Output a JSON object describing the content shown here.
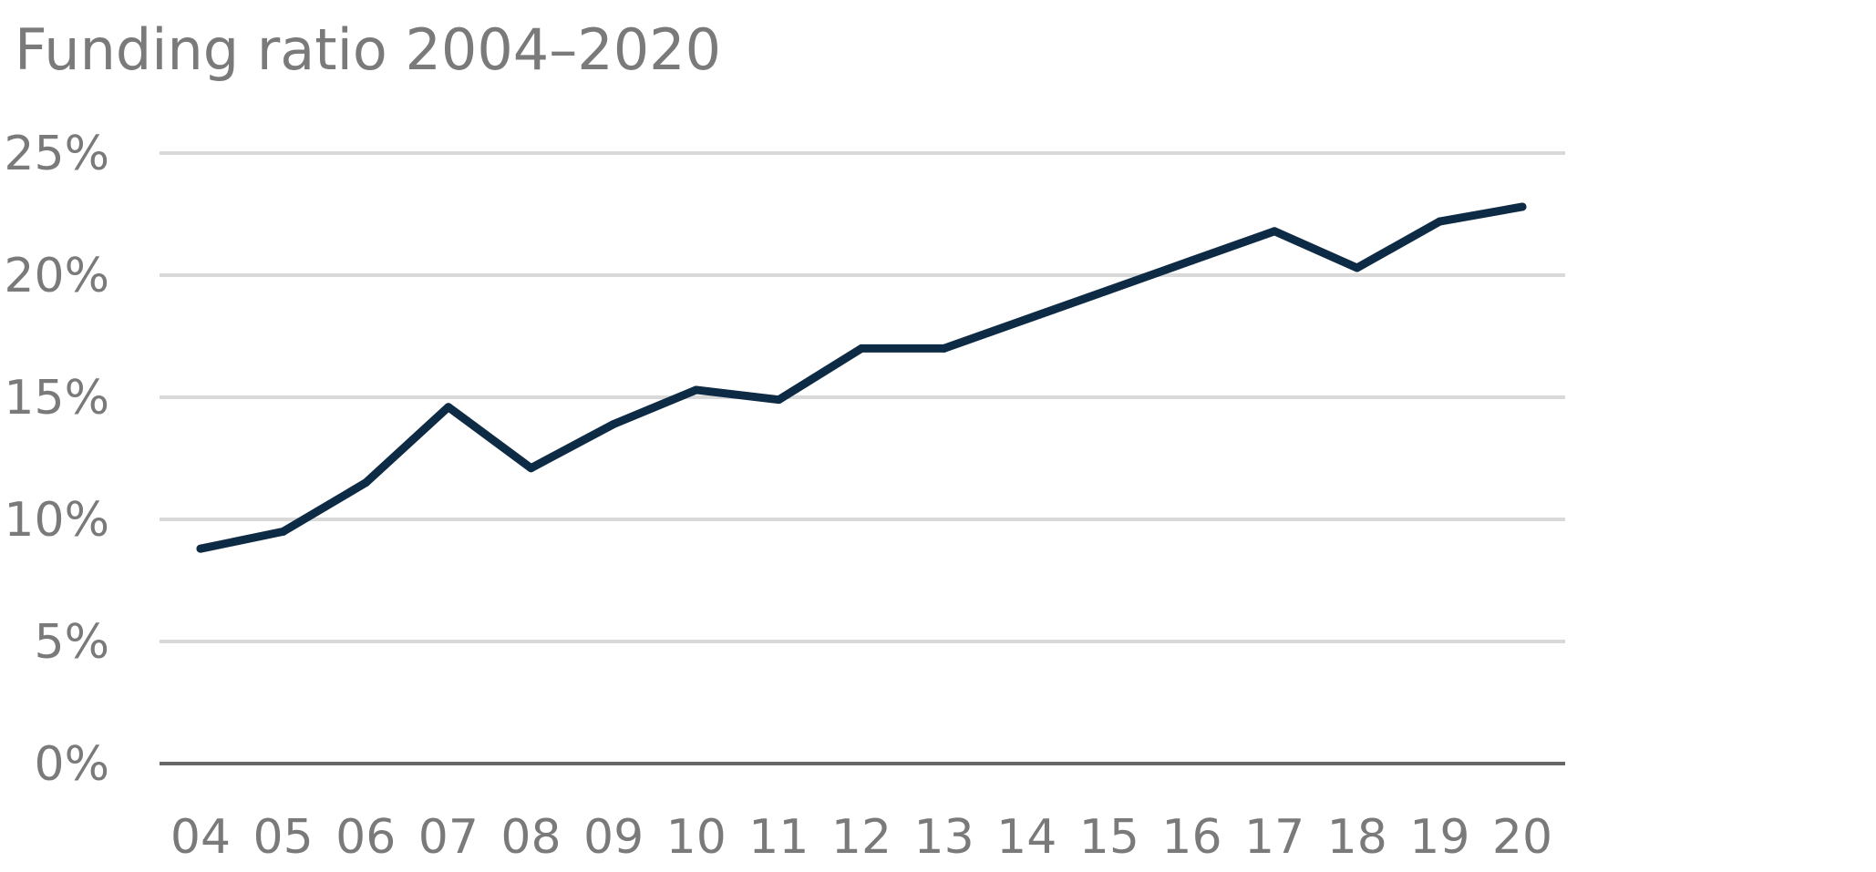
{
  "chart_data": {
    "type": "line",
    "title": "Funding ratio 2004–2020",
    "xlabel": "",
    "ylabel": "",
    "categories": [
      "04",
      "05",
      "06",
      "07",
      "08",
      "09",
      "10",
      "11",
      "12",
      "13",
      "14",
      "15",
      "16",
      "17",
      "18",
      "19",
      "20"
    ],
    "series": [
      {
        "values": [
          8.8,
          9.5,
          11.5,
          14.6,
          12.1,
          13.9,
          15.3,
          14.9,
          17.0,
          17.0,
          18.2,
          19.4,
          20.6,
          21.8,
          20.3,
          22.2,
          22.8
        ],
        "color": "#0d2b45"
      }
    ],
    "ylim": [
      0,
      25
    ],
    "y_ticks": [
      0,
      5,
      10,
      15,
      20,
      25
    ],
    "y_tick_labels": [
      "0%",
      "5%",
      "10%",
      "15%",
      "20%",
      "25%"
    ],
    "grid": true,
    "legend": "none"
  }
}
